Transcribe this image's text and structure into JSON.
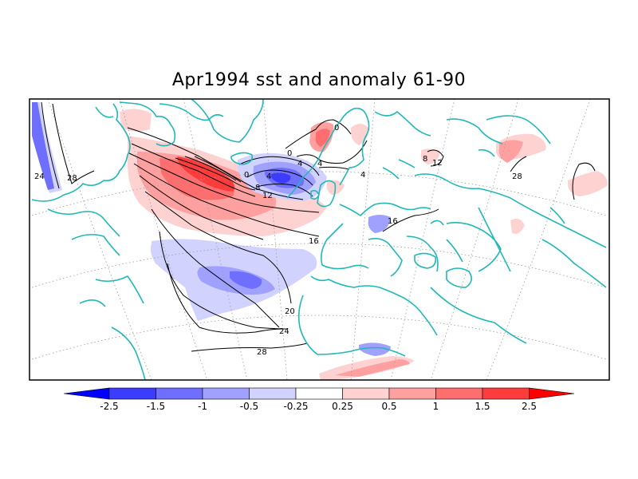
{
  "title": "Apr1994 sst and anomaly 61-90",
  "colors": {
    "coast": "#20b8b8",
    "contour": "#000000",
    "grid": "#9a9a9a",
    "scale": [
      "#0000ff",
      "#3c3cff",
      "#6e6eff",
      "#a0a0ff",
      "#d2d2ff",
      "#ffffff",
      "#ffd2d2",
      "#ffa0a0",
      "#ff6e6e",
      "#ff3c3c",
      "#ff0000"
    ]
  },
  "colorbar": {
    "levels": [
      "-2.5",
      "-1.5",
      "-1",
      "-0.5",
      "-0.25",
      "0.25",
      "0.5",
      "1",
      "1.5",
      "2.5"
    ]
  },
  "contour_labels": [
    "24",
    "28",
    "0",
    "4",
    "8",
    "12",
    "0",
    "4",
    "4",
    "16",
    "16",
    "20",
    "24",
    "28",
    "28",
    "8",
    "12",
    "0",
    "4"
  ]
}
